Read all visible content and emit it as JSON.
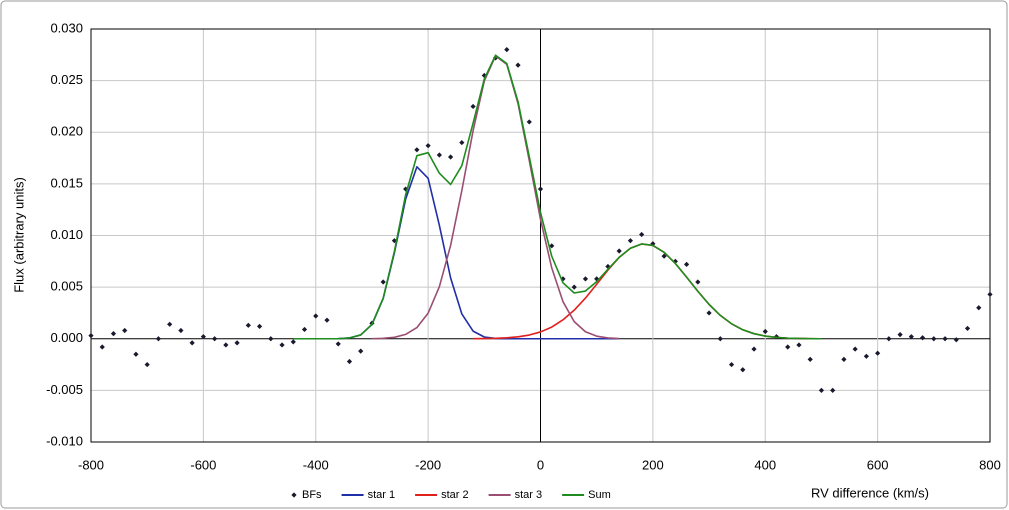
{
  "chart_data": {
    "type": "line",
    "ylabel": "Flux (arbitrary units)",
    "xlabel": "RV difference (km/s)",
    "xlim": [
      -800,
      800
    ],
    "xticks": [
      -800,
      -600,
      -400,
      -200,
      0,
      200,
      400,
      600,
      800
    ],
    "ylim": [
      -0.01,
      0.03
    ],
    "yticks": [
      {
        "value": -0.01,
        "label": "-0.010"
      },
      {
        "value": -0.005,
        "label": "-0.005"
      },
      {
        "value": 0,
        "label": "0.000"
      },
      {
        "value": 0.005,
        "label": "0.005"
      },
      {
        "value": 0.01,
        "label": "0.010"
      },
      {
        "value": 0.015,
        "label": "0.015"
      },
      {
        "value": 0.02,
        "label": "0.020"
      },
      {
        "value": 0.025,
        "label": "0.025"
      },
      {
        "value": 0.03,
        "label": "0.030"
      }
    ],
    "grid": true,
    "legend": "bottom",
    "series": [
      {
        "name": "BFs",
        "type": "scatter",
        "color": "#1a1a2e",
        "x": [
          -800,
          -780,
          -760,
          -740,
          -720,
          -700,
          -680,
          -660,
          -640,
          -620,
          -600,
          -580,
          -560,
          -540,
          -520,
          -500,
          -480,
          -460,
          -440,
          -420,
          -400,
          -380,
          -360,
          -340,
          -320,
          -300,
          -280,
          -260,
          -240,
          -220,
          -200,
          -180,
          -160,
          -140,
          -120,
          -100,
          -80,
          -60,
          -40,
          -20,
          0,
          20,
          40,
          60,
          80,
          100,
          120,
          140,
          160,
          180,
          200,
          220,
          240,
          260,
          280,
          300,
          320,
          340,
          360,
          380,
          400,
          420,
          440,
          460,
          480,
          500,
          520,
          540,
          560,
          580,
          600,
          620,
          640,
          660,
          680,
          700,
          720,
          740,
          760,
          780,
          800
        ],
        "values": [
          0.0003,
          -0.0008,
          0.0005,
          0.0008,
          -0.0015,
          -0.0025,
          0.0,
          0.0014,
          0.0008,
          -0.0004,
          0.0002,
          0.0,
          -0.0006,
          -0.0004,
          0.0013,
          0.0012,
          0.0,
          -0.0006,
          -0.0003,
          0.0009,
          0.0022,
          0.0018,
          -0.0005,
          -0.0022,
          -0.0012,
          0.0015,
          0.0055,
          0.0095,
          0.0145,
          0.0183,
          0.0187,
          0.0178,
          0.0176,
          0.019,
          0.0225,
          0.0255,
          0.0272,
          0.028,
          0.0265,
          0.021,
          0.0145,
          0.009,
          0.0058,
          0.005,
          0.0058,
          0.0058,
          0.007,
          0.0085,
          0.0095,
          0.0101,
          0.0092,
          0.008,
          0.0075,
          0.0072,
          0.0055,
          0.0025,
          0.0,
          -0.0025,
          -0.003,
          -0.001,
          0.0007,
          0.0002,
          -0.0008,
          -0.0006,
          -0.002,
          -0.005,
          -0.005,
          -0.002,
          -0.001,
          -0.0017,
          -0.0014,
          0.0,
          0.0004,
          0.0002,
          0.0001,
          0.0,
          0.0,
          -0.0001,
          0.001,
          0.003,
          0.0043
        ]
      },
      {
        "name": "star 1",
        "type": "line",
        "color": "#1f2fa8",
        "x": [
          -440,
          -420,
          -400,
          -380,
          -360,
          -340,
          -320,
          -300,
          -280,
          -260,
          -240,
          -220,
          -200,
          -180,
          -160,
          -140,
          -120,
          -100,
          -80,
          -60,
          -40,
          -20,
          0,
          20,
          40,
          60,
          80,
          100,
          120,
          140
        ],
        "values": [
          0,
          0,
          0,
          0,
          1e-05,
          7.5e-05,
          0.00037,
          0.00138,
          0.00389,
          0.00833,
          0.01353,
          0.01665,
          0.01554,
          0.01099,
          0.0059,
          0.0024,
          0.00074,
          0.00017,
          3e-05,
          0,
          0,
          0,
          0,
          0,
          0,
          0,
          0,
          0,
          0,
          0
        ]
      },
      {
        "name": "star 2",
        "type": "line",
        "color": "#e0201c",
        "x": [
          -120,
          -100,
          -80,
          -60,
          -40,
          -20,
          0,
          20,
          40,
          60,
          80,
          100,
          120,
          140,
          160,
          180,
          200,
          220,
          240,
          260,
          280,
          300,
          320,
          340,
          360,
          380,
          400,
          420,
          440,
          460,
          480,
          500
        ],
        "values": [
          1e-05,
          2e-05,
          4e-05,
          9e-05,
          0.00019,
          0.00036,
          0.00066,
          0.00113,
          0.00183,
          0.00277,
          0.00394,
          0.00528,
          0.00665,
          0.00787,
          0.00876,
          0.00918,
          0.00904,
          0.00837,
          0.00729,
          0.00597,
          0.0046,
          0.00333,
          0.00226,
          0.00145,
          0.00087,
          0.00049,
          0.00026,
          0.00013,
          6e-05,
          3e-05,
          1e-05,
          0
        ]
      },
      {
        "name": "star 3",
        "type": "line",
        "color": "#9a4f72",
        "x": [
          -300,
          -280,
          -260,
          -240,
          -220,
          -200,
          -180,
          -160,
          -140,
          -120,
          -100,
          -80,
          -60,
          -40,
          -20,
          0,
          20,
          40,
          60,
          80,
          100,
          120,
          140
        ],
        "values": [
          1e-05,
          4e-05,
          0.00014,
          0.00042,
          0.00108,
          0.00248,
          0.00504,
          0.00904,
          0.01436,
          0.02014,
          0.02497,
          0.02739,
          0.02657,
          0.02277,
          0.01727,
          0.01157,
          0.00686,
          0.00359,
          0.00166,
          0.00068,
          0.00025,
          8e-05,
          2e-05
        ]
      },
      {
        "name": "Sum",
        "type": "line",
        "color": "#1e8c1e",
        "x": [
          -440,
          -420,
          -400,
          -380,
          -360,
          -340,
          -320,
          -300,
          -280,
          -260,
          -240,
          -220,
          -200,
          -180,
          -160,
          -140,
          -120,
          -100,
          -80,
          -60,
          -40,
          -20,
          0,
          20,
          40,
          60,
          80,
          100,
          120,
          140,
          160,
          180,
          200,
          220,
          240,
          260,
          280,
          300,
          320,
          340,
          360,
          380,
          400,
          420,
          440,
          460,
          480,
          500
        ],
        "values": [
          0,
          0,
          0,
          0,
          1e-05,
          8e-05,
          0.00037,
          0.00139,
          0.00393,
          0.00847,
          0.01395,
          0.01773,
          0.01802,
          0.01603,
          0.01494,
          0.01676,
          0.02088,
          0.02516,
          0.02746,
          0.02666,
          0.02296,
          0.01763,
          0.01223,
          0.00799,
          0.00542,
          0.00443,
          0.00462,
          0.00553,
          0.00673,
          0.00789,
          0.00876,
          0.00918,
          0.00904,
          0.00837,
          0.00729,
          0.00597,
          0.0046,
          0.00333,
          0.00226,
          0.00145,
          0.00087,
          0.00049,
          0.00026,
          0.00013,
          6e-05,
          3e-05,
          1e-05,
          0
        ]
      }
    ]
  }
}
